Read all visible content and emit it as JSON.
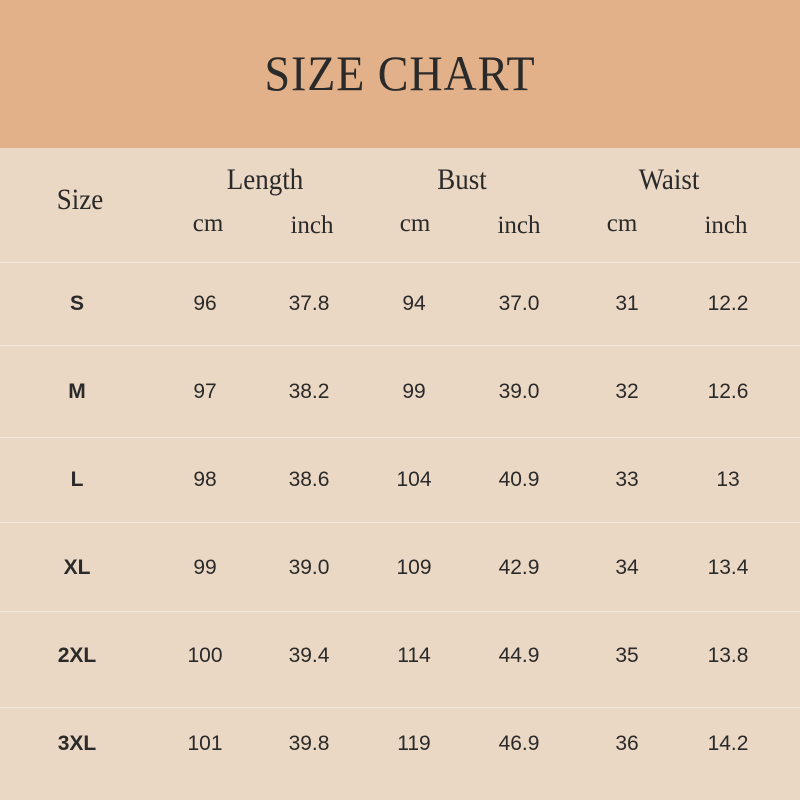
{
  "title": "SIZE CHART",
  "colors": {
    "banner": "#e2b189",
    "background": "#ead7c4",
    "text": "#2a2a2a"
  },
  "header": {
    "size": "Size",
    "groups": [
      "Length",
      "Bust",
      "Waist"
    ],
    "units": [
      "cm",
      "inch",
      "cm",
      "inch",
      "cm",
      "inch"
    ]
  },
  "rows": [
    {
      "size": "S",
      "values": [
        "96",
        "37.8",
        "94",
        "37.0",
        "31",
        "12.2"
      ]
    },
    {
      "size": "M",
      "values": [
        "97",
        "38.2",
        "99",
        "39.0",
        "32",
        "12.6"
      ]
    },
    {
      "size": "L",
      "values": [
        "98",
        "38.6",
        "104",
        "40.9",
        "33",
        "13"
      ]
    },
    {
      "size": "XL",
      "values": [
        "99",
        "39.0",
        "109",
        "42.9",
        "34",
        "13.4"
      ]
    },
    {
      "size": "2XL",
      "values": [
        "100",
        "39.4",
        "114",
        "44.9",
        "35",
        "13.8"
      ]
    },
    {
      "size": "3XL",
      "values": [
        "101",
        "39.8",
        "119",
        "46.9",
        "36",
        "14.2"
      ]
    }
  ]
}
